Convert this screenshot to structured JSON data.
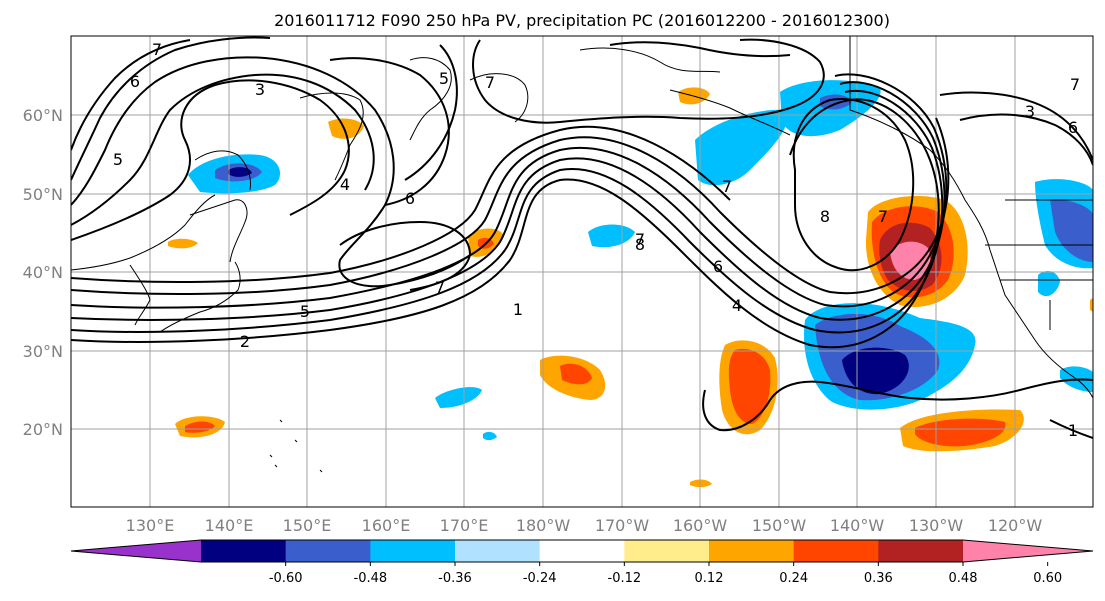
{
  "title": "2016011712 F090 250 hPa PV, precipitation PC (2016012200 - 2016012300)",
  "lat_labels": [
    "60°N",
    "50°N",
    "40°N",
    "30°N",
    "20°N"
  ],
  "lon_labels": [
    "130°E",
    "140°E",
    "150°E",
    "160°E",
    "170°E",
    "180°W",
    "170°W",
    "160°W",
    "150°W",
    "140°W",
    "130°W",
    "120°W"
  ],
  "colorbar": {
    "colors": [
      "#9932cc",
      "#000080",
      "#3a5fcd",
      "#00bfff",
      "#b0e2ff",
      "#ffffff",
      "#ffec8b",
      "#ffa500",
      "#ff4500",
      "#b22222",
      "#ff82ab"
    ],
    "tick_labels": [
      "-0.60",
      "-0.48",
      "-0.36",
      "-0.24",
      "-0.12",
      "0.12",
      "0.24",
      "0.36",
      "0.48",
      "0.60"
    ]
  },
  "contour_labels": [
    "7",
    "6",
    "5",
    "3",
    "4",
    "6",
    "5",
    "2",
    "7",
    "7",
    "1",
    "7",
    "6",
    "4",
    "8",
    "7",
    "7",
    "6",
    "5",
    "3",
    "1",
    "7",
    "8"
  ]
}
